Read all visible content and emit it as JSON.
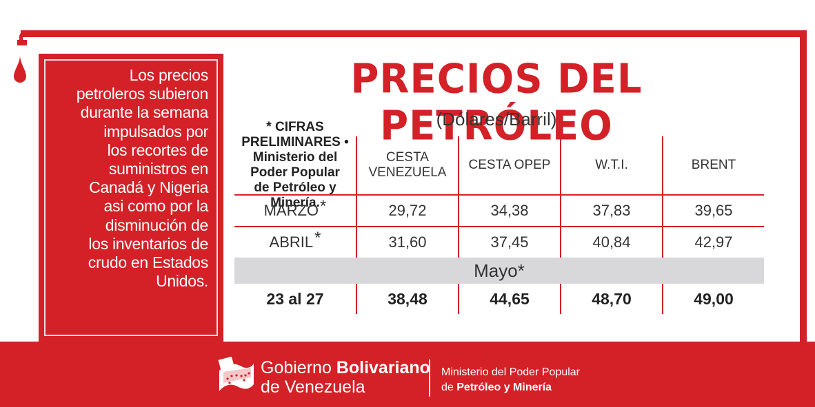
{
  "info": {
    "lines": [
      "Los precios",
      "petroleros subieron",
      "durante la semana",
      "impulsados por",
      "los recortes de",
      "suministros en",
      "Canadá y Nigeria",
      "asi como por la",
      "disminución de",
      "los inventarios de",
      "crudo en Estados",
      "Unidos."
    ]
  },
  "title": "PRECIOS DEL PETRÓLEO",
  "subtitle": "(Dólares/Barril)",
  "table": {
    "note_line1": "* CIFRAS PRELIMINARES •",
    "note_line2": "Ministerio del Poder Popular",
    "note_line3": "de Petróleo y Minería.",
    "col1_line1": "CESTA",
    "col1_line2": "VENEZUELA",
    "col2": "CESTA OPEP",
    "col3": "W.T.I.",
    "col4": "BRENT",
    "asterisk": "*",
    "rows": [
      {
        "label": "MARZO",
        "v1": "29,72",
        "v2": "34,38",
        "v3": "37,83",
        "v4": "39,65"
      },
      {
        "label": "ABRIL",
        "v1": "31,60",
        "v2": "37,45",
        "v3": "40,84",
        "v4": "42,97"
      }
    ],
    "section": "Mayo*",
    "week": {
      "label": "23 al 27",
      "v1": "38,48",
      "v2": "44,65",
      "v3": "48,70",
      "v4": "49,00"
    }
  },
  "footer": {
    "gov_regular": "Gobierno ",
    "gov_bold": "Bolivariano",
    "gov_line2": "de Venezuela",
    "min_line1": "Ministerio del Poder Popular",
    "min_line2_pre": "de ",
    "min_line2_bold": "Petróleo y Minería"
  },
  "colors": {
    "brand_red": "#d42027",
    "band_gray": "#d8d8da"
  }
}
